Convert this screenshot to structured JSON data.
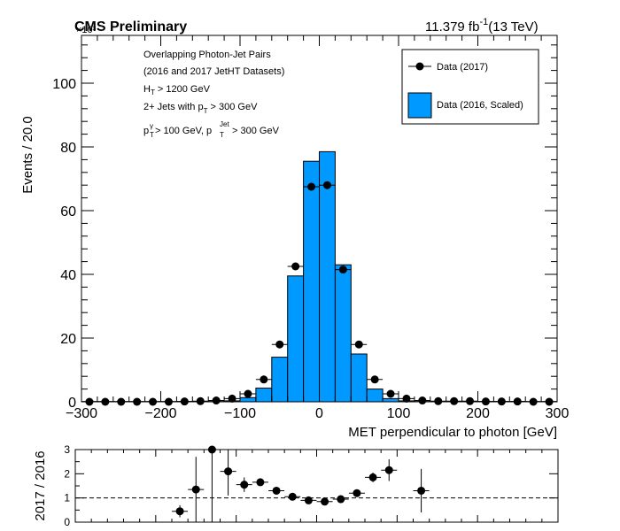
{
  "header": {
    "left": "CMS Preliminary",
    "left_overlap": "×10³",
    "lumi_value": "11.379 fb",
    "lumi_exp": "-1",
    "lumi_energy": "(13 TeV)"
  },
  "annotations": {
    "line1": "Overlapping Photon-Jet Pairs",
    "line2": "(2016 and 2017 JetHT Datasets)",
    "line3_main": "H",
    "line3_sub": "T",
    "line3_rest": " > 1200 GeV",
    "line4_pre": "2+ Jets with p",
    "line4_sub": "T",
    "line4_rest": " > 300 GeV",
    "line5_p1": "p",
    "line5_sub1": "T",
    "line5_sup1": "γ",
    "line5_mid": " > 100 GeV, p",
    "line5_sub2": "T",
    "line5_sup2": "Jet",
    "line5_rest": " > 300 GeV"
  },
  "legend": {
    "entries": [
      {
        "label": "Data (2017)",
        "style": "marker"
      },
      {
        "label": "Data (2016, Scaled)",
        "style": "fill"
      }
    ]
  },
  "colors": {
    "fill": "#0099ff",
    "marker": "#000000",
    "dashed": "#000000"
  },
  "chart_data": [
    {
      "type": "bar",
      "xlabel": "MET perpendicular to photon [GeV]",
      "ylabel": "Events / 20.0",
      "xlim": [
        -300,
        300
      ],
      "ylim": [
        0,
        115
      ],
      "y_multiplier": "×10³",
      "xticks": [
        -300,
        -200,
        -100,
        0,
        100,
        200,
        300
      ],
      "yticks": [
        0,
        20,
        40,
        60,
        80,
        100
      ],
      "bin_edges": [
        -300,
        -280,
        -260,
        -240,
        -220,
        -200,
        -180,
        -160,
        -140,
        -120,
        -100,
        -80,
        -60,
        -40,
        -20,
        0,
        20,
        40,
        60,
        80,
        100,
        120,
        140,
        160,
        180,
        200,
        220,
        240,
        260,
        280,
        300
      ],
      "series": [
        {
          "name": "Data (2016, Scaled)",
          "style": "hist",
          "values": [
            0.1,
            0.1,
            0.1,
            0.1,
            0.1,
            0.1,
            0.1,
            0.1,
            0.1,
            0.3,
            1.3,
            4.3,
            14.0,
            39.5,
            75.5,
            78.5,
            43.0,
            15.0,
            4.0,
            1.0,
            0.3,
            0.1,
            0.1,
            0.1,
            0.1,
            0.1,
            0.1,
            0.1,
            0.1,
            0.1
          ]
        },
        {
          "name": "Data (2017)",
          "style": "points",
          "values": [
            0.0,
            0.0,
            0.0,
            0.0,
            0.0,
            0.0,
            0.1,
            0.2,
            0.4,
            1.0,
            2.5,
            7.0,
            18.0,
            42.5,
            67.5,
            68.0,
            41.5,
            18.0,
            7.0,
            2.5,
            1.0,
            0.4,
            0.2,
            0.2,
            0.2,
            0.1,
            0.1,
            0.1,
            0.0,
            0.0
          ]
        }
      ]
    },
    {
      "type": "scatter",
      "ylabel": "2017 / 2016",
      "xlim": [
        -300,
        300
      ],
      "ylim": [
        0,
        3
      ],
      "yticks": [
        0,
        1,
        2,
        3
      ],
      "reference_line": 1,
      "points": [
        {
          "x": -170,
          "y": 0.45,
          "err": 0.25
        },
        {
          "x": -150,
          "y": 1.35,
          "err": 1.35
        },
        {
          "x": -130,
          "y": 3.0,
          "err": 3.0
        },
        {
          "x": -110,
          "y": 2.1,
          "err": 1.0
        },
        {
          "x": -90,
          "y": 1.55,
          "err": 0.3
        },
        {
          "x": -70,
          "y": 1.65,
          "err": 0.15
        },
        {
          "x": -50,
          "y": 1.3,
          "err": 0.07
        },
        {
          "x": -30,
          "y": 1.05,
          "err": 0.03
        },
        {
          "x": -10,
          "y": 0.9,
          "err": 0.02
        },
        {
          "x": 10,
          "y": 0.85,
          "err": 0.02
        },
        {
          "x": 30,
          "y": 0.95,
          "err": 0.03
        },
        {
          "x": 50,
          "y": 1.2,
          "err": 0.07
        },
        {
          "x": 70,
          "y": 1.85,
          "err": 0.2
        },
        {
          "x": 90,
          "y": 2.15,
          "err": 0.45
        },
        {
          "x": 130,
          "y": 1.3,
          "err": 0.9
        }
      ]
    }
  ]
}
